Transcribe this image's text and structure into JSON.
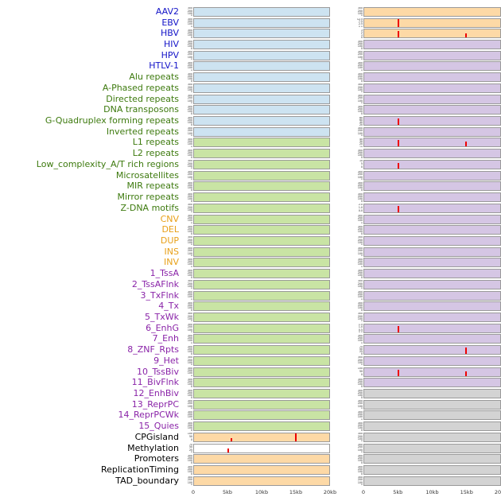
{
  "colors": {
    "label": {
      "virus": "#1414c8",
      "repeat": "#3d7a0e",
      "sv": "#e8a019",
      "state": "#8a24a8",
      "other": "#000000"
    },
    "panel": {
      "blue": "#cde3f1",
      "green": "#c9e4a4",
      "orange": "#fdd9a6",
      "purple": "#d5c6e4",
      "gray": "#d3d3d3",
      "white": "#ffffff"
    },
    "spike": "#ee0000"
  },
  "chart_data": {
    "type": "area",
    "layout": "small-multiple genomic feature tracks, 44 rows x 2 columns",
    "x_ticks": [
      "0",
      "5kb",
      "10kb",
      "15kb",
      "20kb"
    ],
    "x_range_kb": [
      0,
      20
    ],
    "default_ticks": [
      "300",
      "200",
      "100",
      "0"
    ],
    "rows": [
      {
        "label": "AAV2",
        "group": "virus",
        "left": {
          "bg": "blue"
        },
        "right": {
          "bg": "orange"
        }
      },
      {
        "label": "EBV",
        "group": "virus",
        "left": {
          "bg": "blue"
        },
        "right": {
          "bg": "orange",
          "ticks": [
            "12.5",
            "7.5",
            "2.5",
            "0.0"
          ],
          "spikes": [
            {
              "x_kb": 5,
              "h": 0.92
            }
          ]
        }
      },
      {
        "label": "HBV",
        "group": "virus",
        "left": {
          "bg": "blue"
        },
        "right": {
          "bg": "orange",
          "ticks": [
            "3",
            "2",
            "1",
            "0"
          ],
          "spikes": [
            {
              "x_kb": 5,
              "h": 0.85
            },
            {
              "x_kb": 15,
              "h": 0.55
            }
          ]
        }
      },
      {
        "label": "HIV",
        "group": "virus",
        "left": {
          "bg": "blue"
        },
        "right": {
          "bg": "purple"
        }
      },
      {
        "label": "HPV",
        "group": "virus",
        "left": {
          "bg": "blue"
        },
        "right": {
          "bg": "purple"
        }
      },
      {
        "label": "HTLV-1",
        "group": "virus",
        "left": {
          "bg": "blue"
        },
        "right": {
          "bg": "purple"
        }
      },
      {
        "label": "Alu repeats",
        "group": "repeat",
        "left": {
          "bg": "blue"
        },
        "right": {
          "bg": "purple"
        }
      },
      {
        "label": "A-Phased repeats",
        "group": "repeat",
        "left": {
          "bg": "blue"
        },
        "right": {
          "bg": "purple"
        }
      },
      {
        "label": "Directed repeats",
        "group": "repeat",
        "left": {
          "bg": "blue"
        },
        "right": {
          "bg": "purple"
        }
      },
      {
        "label": "DNA transposons",
        "group": "repeat",
        "left": {
          "bg": "blue"
        },
        "right": {
          "bg": "purple"
        }
      },
      {
        "label": "G-Quadruplex forming repeats",
        "group": "repeat",
        "left": {
          "bg": "blue"
        },
        "right": {
          "bg": "purple",
          "ticks": [
            "80",
            "60",
            "40",
            "20"
          ],
          "spikes": [
            {
              "x_kb": 5,
              "h": 0.8
            }
          ]
        }
      },
      {
        "label": "Inverted repeats",
        "group": "repeat",
        "left": {
          "bg": "blue"
        },
        "right": {
          "bg": "purple"
        }
      },
      {
        "label": "L1 repeats",
        "group": "repeat",
        "left": {
          "bg": "green"
        },
        "right": {
          "bg": "purple",
          "ticks": [
            "40",
            "30",
            "20",
            "10"
          ],
          "spikes": [
            {
              "x_kb": 5,
              "h": 0.85
            },
            {
              "x_kb": 15,
              "h": 0.65
            }
          ]
        }
      },
      {
        "label": "L2 repeats",
        "group": "repeat",
        "left": {
          "bg": "green"
        },
        "right": {
          "bg": "purple"
        }
      },
      {
        "label": "Low_complexity_A/T rich regions",
        "group": "repeat",
        "left": {
          "bg": "green"
        },
        "right": {
          "bg": "purple",
          "ticks": [
            "10",
            "5",
            "0"
          ],
          "spikes": [
            {
              "x_kb": 5,
              "h": 0.7
            }
          ]
        }
      },
      {
        "label": "Microsatellites",
        "group": "repeat",
        "left": {
          "bg": "green"
        },
        "right": {
          "bg": "purple"
        }
      },
      {
        "label": "MIR repeats",
        "group": "repeat",
        "left": {
          "bg": "green"
        },
        "right": {
          "bg": "purple"
        }
      },
      {
        "label": "Mirror repeats",
        "group": "repeat",
        "left": {
          "bg": "green"
        },
        "right": {
          "bg": "purple"
        }
      },
      {
        "label": "Z-DNA motifs",
        "group": "repeat",
        "left": {
          "bg": "green"
        },
        "right": {
          "bg": "purple",
          "ticks": [
            "2.0",
            "1.0",
            "0.0"
          ],
          "spikes": [
            {
              "x_kb": 5,
              "h": 0.8
            }
          ]
        }
      },
      {
        "label": "CNV",
        "group": "sv",
        "left": {
          "bg": "green"
        },
        "right": {
          "bg": "purple"
        }
      },
      {
        "label": "DEL",
        "group": "sv",
        "left": {
          "bg": "green"
        },
        "right": {
          "bg": "purple"
        }
      },
      {
        "label": "DUP",
        "group": "sv",
        "left": {
          "bg": "green"
        },
        "right": {
          "bg": "purple"
        }
      },
      {
        "label": "INS",
        "group": "sv",
        "left": {
          "bg": "green"
        },
        "right": {
          "bg": "purple"
        }
      },
      {
        "label": "INV",
        "group": "sv",
        "left": {
          "bg": "green"
        },
        "right": {
          "bg": "purple"
        }
      },
      {
        "label": "1_TssA",
        "group": "state",
        "left": {
          "bg": "green"
        },
        "right": {
          "bg": "purple"
        }
      },
      {
        "label": "2_TssAFlnk",
        "group": "state",
        "left": {
          "bg": "green"
        },
        "right": {
          "bg": "purple"
        }
      },
      {
        "label": "3_TxFlnk",
        "group": "state",
        "left": {
          "bg": "green"
        },
        "right": {
          "bg": "purple"
        }
      },
      {
        "label": "4_Tx",
        "group": "state",
        "left": {
          "bg": "green"
        },
        "right": {
          "bg": "purple"
        }
      },
      {
        "label": "5_TxWk",
        "group": "state",
        "left": {
          "bg": "green"
        },
        "right": {
          "bg": "purple"
        }
      },
      {
        "label": "6_EnhG",
        "group": "state",
        "left": {
          "bg": "green"
        },
        "right": {
          "bg": "purple",
          "ticks": [
            "1.5",
            "1.0",
            "0.5",
            "0.0"
          ],
          "spikes": [
            {
              "x_kb": 5,
              "h": 0.75
            }
          ]
        }
      },
      {
        "label": "7_Enh",
        "group": "state",
        "left": {
          "bg": "green"
        },
        "right": {
          "bg": "purple"
        }
      },
      {
        "label": "8_ZNF_Rpts",
        "group": "state",
        "left": {
          "bg": "green"
        },
        "right": {
          "bg": "purple",
          "ticks": [
            "75",
            "50",
            "25",
            "0"
          ],
          "spikes": [
            {
              "x_kb": 15,
              "h": 0.85
            }
          ]
        }
      },
      {
        "label": "9_Het",
        "group": "state",
        "left": {
          "bg": "green"
        },
        "right": {
          "bg": "purple"
        }
      },
      {
        "label": "10_TssBiv",
        "group": "state",
        "left": {
          "bg": "green"
        },
        "right": {
          "bg": "purple",
          "ticks": [
            "100",
            "50",
            "0"
          ],
          "spikes": [
            {
              "x_kb": 5,
              "h": 0.8
            },
            {
              "x_kb": 15,
              "h": 0.55
            }
          ]
        }
      },
      {
        "label": "11_BivFlnk",
        "group": "state",
        "left": {
          "bg": "green"
        },
        "right": {
          "bg": "purple"
        }
      },
      {
        "label": "12_EnhBiv",
        "group": "state",
        "left": {
          "bg": "green"
        },
        "right": {
          "bg": "gray"
        }
      },
      {
        "label": "13_ReprPC",
        "group": "state",
        "left": {
          "bg": "green"
        },
        "right": {
          "bg": "gray"
        }
      },
      {
        "label": "14_ReprPCWk",
        "group": "state",
        "left": {
          "bg": "green"
        },
        "right": {
          "bg": "gray"
        }
      },
      {
        "label": "15_Quies",
        "group": "state",
        "left": {
          "bg": "green"
        },
        "right": {
          "bg": "gray"
        }
      },
      {
        "label": "CPGisland",
        "group": "other",
        "left": {
          "bg": "orange",
          "ticks": [
            "100",
            "50",
            "0"
          ],
          "spikes": [
            {
              "x_kb": 5.5,
              "h": 0.4
            },
            {
              "x_kb": 15,
              "h": 0.95
            }
          ]
        },
        "right": {
          "bg": "gray"
        }
      },
      {
        "label": "Methylation",
        "group": "other",
        "left": {
          "bg": "white",
          "ticks": [
            "75",
            "50",
            "25",
            "0"
          ],
          "spikes": [
            {
              "x_kb": 5,
              "h": 0.45
            }
          ]
        },
        "right": {
          "bg": "gray"
        }
      },
      {
        "label": "Promoters",
        "group": "other",
        "left": {
          "bg": "orange"
        },
        "right": {
          "bg": "gray"
        }
      },
      {
        "label": "ReplicationTiming",
        "group": "other",
        "left": {
          "bg": "orange"
        },
        "right": {
          "bg": "gray"
        }
      },
      {
        "label": "TAD_boundary",
        "group": "other",
        "left": {
          "bg": "orange"
        },
        "right": {
          "bg": "gray"
        }
      }
    ]
  }
}
